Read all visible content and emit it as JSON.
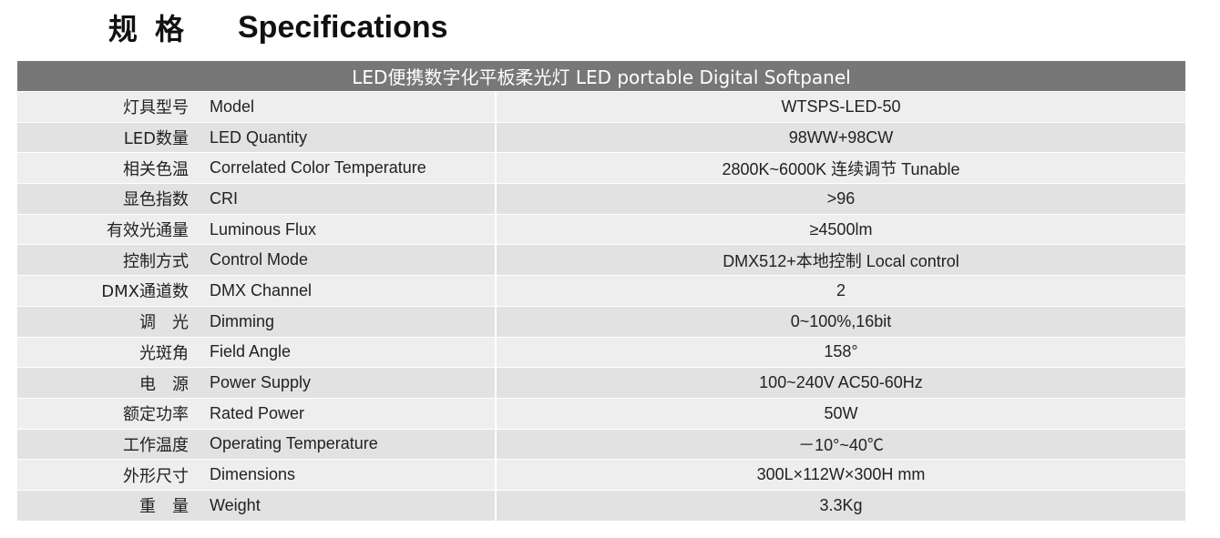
{
  "header": {
    "title_cn": "规 格",
    "title_en": "Specifications"
  },
  "table": {
    "title": "LED便携数字化平板柔光灯  LED portable Digital Softpanel",
    "rows": [
      [
        "灯具型号",
        "Model",
        "WTSPS-LED-50"
      ],
      [
        "LED数量",
        "LED Quantity",
        "98WW+98CW"
      ],
      [
        "相关色温",
        "Correlated Color Temperature",
        "2800K~6000K 连续调节 Tunable"
      ],
      [
        "显色指数",
        "CRI",
        ">96"
      ],
      [
        "有效光通量",
        "Luminous Flux",
        "≥4500lm"
      ],
      [
        "控制方式",
        "Control Mode",
        "DMX512+本地控制 Local control"
      ],
      [
        "DMX通道数",
        "DMX Channel",
        "2"
      ],
      [
        "调　光",
        "Dimming",
        "0~100%,16bit"
      ],
      [
        "光斑角",
        "Field Angle",
        "158°"
      ],
      [
        "电　源",
        "Power Supply",
        "100~240V AC50-60Hz"
      ],
      [
        "额定功率",
        "Rated Power",
        "50W"
      ],
      [
        "工作温度",
        "Operating Temperature",
        "－10°~40℃"
      ],
      [
        "外形尺寸",
        "Dimensions",
        "300L×112W×300H mm"
      ],
      [
        "重　量",
        "Weight",
        "3.3Kg"
      ]
    ]
  }
}
